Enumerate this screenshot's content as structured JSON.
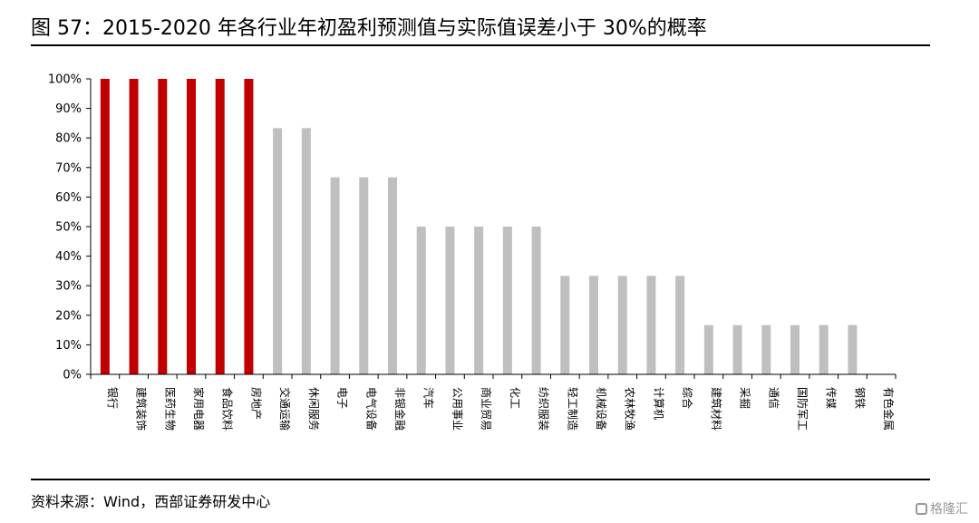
{
  "header": {
    "title": "图 57：2015-2020 年各行业年初盈利预测值与实际值误差小于 30%的概率"
  },
  "footer": {
    "source": "资料来源：Wind，西部证券研发中心",
    "watermark": "格隆汇"
  },
  "colors": {
    "highlight": "#C00000",
    "normal": "#BFBFBF",
    "axis": "#000000"
  },
  "chart_data": {
    "type": "bar",
    "title": "",
    "xlabel": "",
    "ylabel": "",
    "ylim": [
      0,
      1
    ],
    "yticks": [
      "0%",
      "10%",
      "20%",
      "30%",
      "40%",
      "50%",
      "60%",
      "70%",
      "80%",
      "90%",
      "100%"
    ],
    "grid": false,
    "legend": "none",
    "categories": [
      "银行",
      "建筑装饰",
      "医药生物",
      "家用电器",
      "食品饮料",
      "房地产",
      "交通运输",
      "休闲服务",
      "电子",
      "电气设备",
      "非银金融",
      "汽车",
      "公用事业",
      "商业贸易",
      "化工",
      "纺织服装",
      "轻工制造",
      "机械设备",
      "农林牧渔",
      "计算机",
      "综合",
      "建筑材料",
      "采掘",
      "通信",
      "国防军工",
      "传媒",
      "钢铁",
      "有色金属"
    ],
    "values": [
      1.0,
      1.0,
      1.0,
      1.0,
      1.0,
      1.0,
      0.8333,
      0.8333,
      0.6667,
      0.6667,
      0.6667,
      0.5,
      0.5,
      0.5,
      0.5,
      0.5,
      0.3333,
      0.3333,
      0.3333,
      0.3333,
      0.3333,
      0.1667,
      0.1667,
      0.1667,
      0.1667,
      0.1667,
      0.1667,
      0.0
    ],
    "highlighted": [
      true,
      true,
      true,
      true,
      true,
      true,
      false,
      false,
      false,
      false,
      false,
      false,
      false,
      false,
      false,
      false,
      false,
      false,
      false,
      false,
      false,
      false,
      false,
      false,
      false,
      false,
      false,
      false
    ]
  }
}
